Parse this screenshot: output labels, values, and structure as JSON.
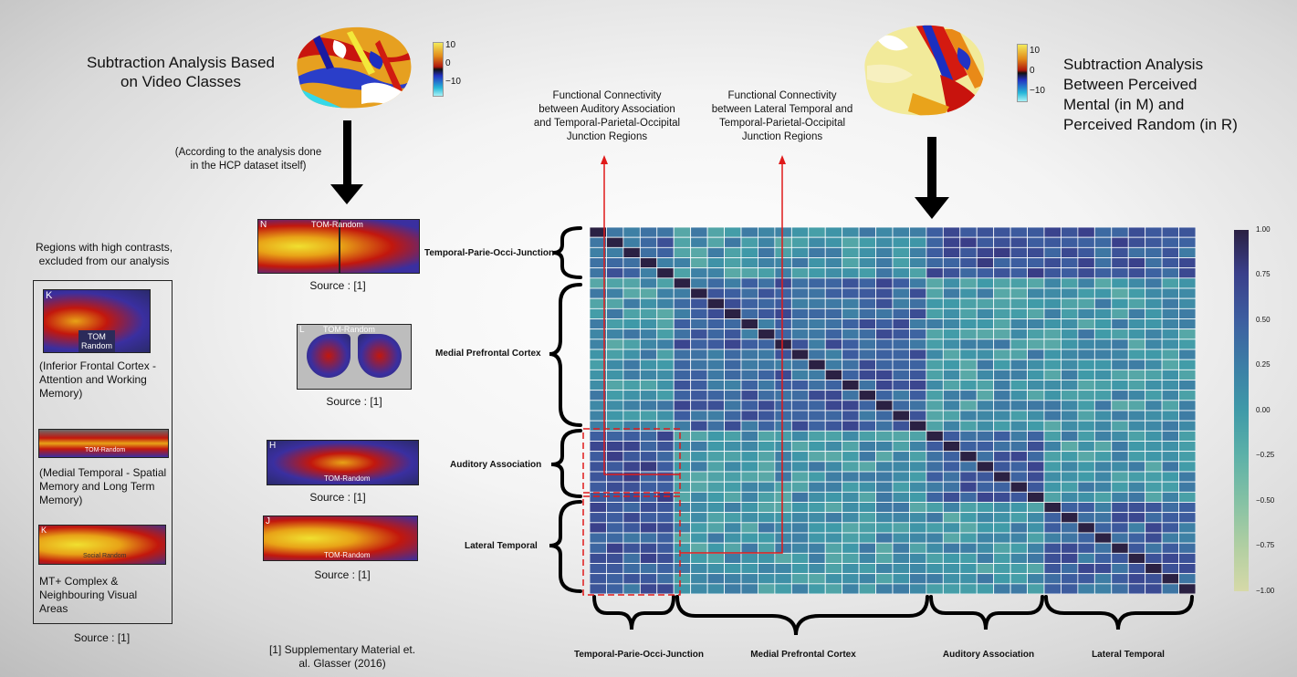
{
  "left_title": [
    "Subtraction Analysis Based",
    "on Video Classes"
  ],
  "right_title": [
    "Subtraction Analysis",
    "Between Perceived",
    "Mental (in M) and",
    "Perceived Random (in R)"
  ],
  "hcp_note": [
    "(According to the analysis done",
    "in the HCP dataset itself)"
  ],
  "fc_auditory": [
    "Functional Connectivity",
    "between Auditory Association",
    "and Temporal-Parietal-Occipital",
    "Junction Regions"
  ],
  "fc_lateral": [
    "Functional Connectivity",
    "between Lateral Temporal and",
    "Temporal-Parietal-Occipital",
    "Junction Regions"
  ],
  "colorbar_left": {
    "ticks": [
      "10",
      "0",
      "−10"
    ]
  },
  "colorbar_right": {
    "ticks": [
      "10",
      "0",
      "−10"
    ]
  },
  "excluded": {
    "header": [
      "Regions with high contrasts,",
      "excluded from our analysis"
    ],
    "panels": [
      {
        "letter": "K",
        "tag": "TOM Random",
        "caption": [
          "(Inferior Frontal Cortex -",
          "Attention and Working",
          "Memory)"
        ]
      },
      {
        "letter": "I",
        "tag": "TOM-Random",
        "caption": [
          "(Medial Temporal - Spatial",
          "Memory and Long Term",
          "Memory)"
        ]
      },
      {
        "letter": "K",
        "tag": "Social Random",
        "caption": [
          "MT+ Complex &",
          "Neighbouring Visual",
          "Areas"
        ]
      }
    ],
    "source": "Source : [1]"
  },
  "middle_panels": [
    {
      "letter": "N",
      "tag": "TOM-Random",
      "source": "Source : [1]"
    },
    {
      "letter": "L",
      "tag": "TOM-Random",
      "source": "Source : [1]"
    },
    {
      "letter": "H",
      "tag": "TOM-Random",
      "source": "Source : [1]"
    },
    {
      "letter": "J",
      "tag": "TOM-Random",
      "source": "Source : [1]"
    }
  ],
  "reference": [
    "[1] Supplementary Material et.",
    "al. Glasser (2016)"
  ],
  "heatmap": {
    "row_groups": [
      "Temporal-Parie-Occi-Junction",
      "Medial Prefrontal Cortex",
      "Auditory Association",
      "Lateral Temporal"
    ],
    "col_groups": [
      "Temporal-Parie-Occi-Junction",
      "Medial Prefrontal Cortex",
      "Auditory Association",
      "Lateral Temporal"
    ],
    "colorbar_ticks": [
      "1.00",
      "0.75",
      "0.50",
      "0.25",
      "0.00",
      "−0.25",
      "−0.50",
      "−0.75",
      "−1.00"
    ]
  },
  "chart_data": {
    "type": "heatmap",
    "n": 36,
    "group_sizes": [
      5,
      15,
      7,
      9
    ],
    "row_groups": [
      "Temporal-Parie-Occi-Junction",
      "Medial Prefrontal Cortex",
      "Auditory Association",
      "Lateral Temporal"
    ],
    "col_groups": [
      "Temporal-Parie-Occi-Junction",
      "Medial Prefrontal Cortex",
      "Auditory Association",
      "Lateral Temporal"
    ],
    "zlim": [
      -1,
      1
    ],
    "diagonal": 1.0,
    "typical_values": {
      "within_group": 0.45,
      "between_group": 0.05,
      "auditory_tpoj": 0.6,
      "lateral_tpoj": 0.5
    }
  }
}
